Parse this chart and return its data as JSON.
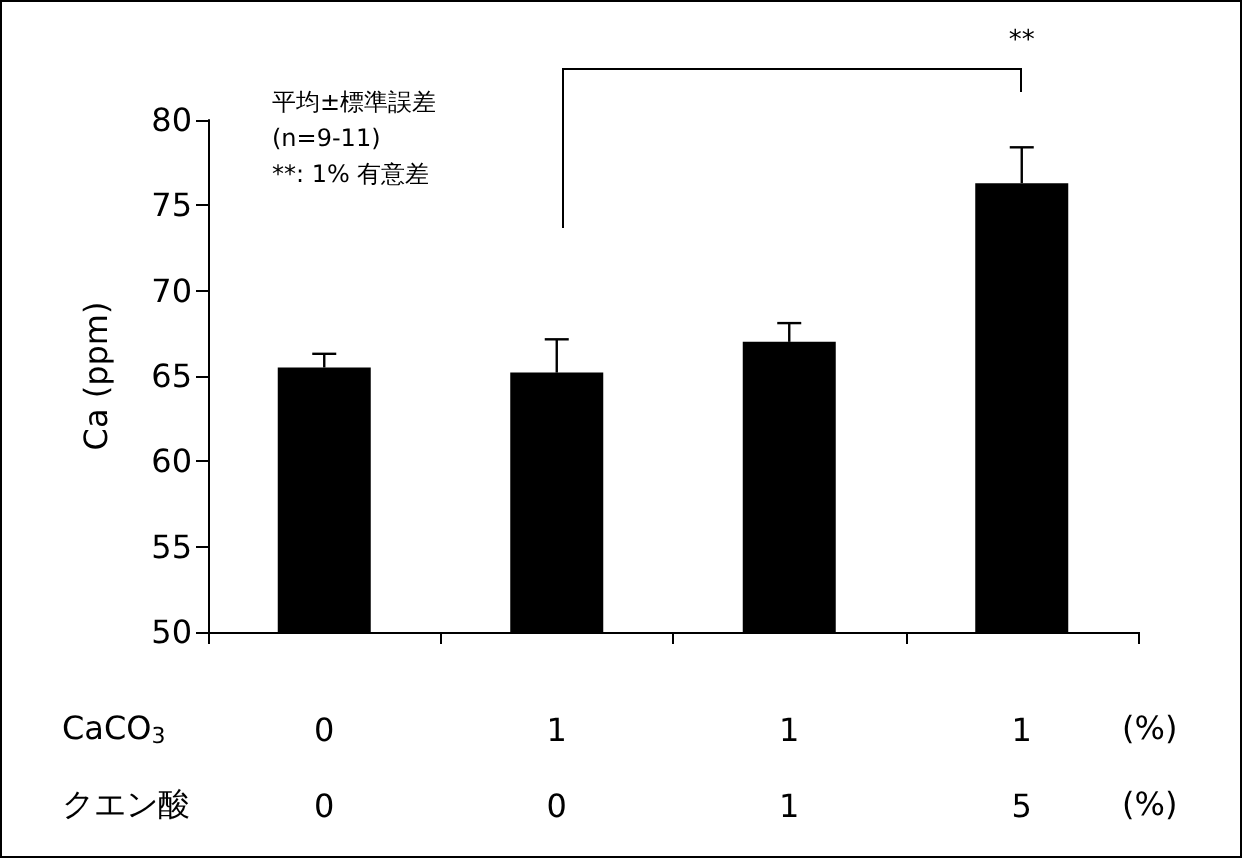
{
  "chart_data": {
    "type": "bar",
    "ylabel": "Ca (ppm)",
    "categories": [
      "0\n0",
      "1\n0",
      "1\n1",
      "1\n5"
    ],
    "values": [
      65.5,
      65.2,
      67.0,
      76.3
    ],
    "errors": [
      [
        65.5,
        66.3
      ],
      [
        65.2,
        67.15
      ],
      [
        67.0,
        68.1
      ],
      [
        76.3,
        78.4
      ]
    ],
    "color": "#000000",
    "ylim": [
      50,
      80
    ],
    "yticks": [
      50,
      55,
      60,
      65,
      70,
      75,
      80
    ],
    "grid": false,
    "annotations": [
      "平均±標準誤差",
      "(n=9-11)",
      "**: 1% 有意差",
      "**",
      "CaCO$_{3}$",
      "クエン酸",
      "(%)",
      "(%)"
    ]
  }
}
